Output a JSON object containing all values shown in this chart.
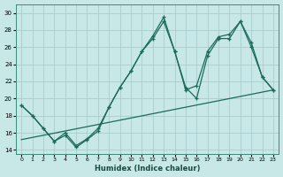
{
  "xlabel": "Humidex (Indice chaleur)",
  "xlim": [
    -0.5,
    23.5
  ],
  "ylim": [
    13.5,
    31.0
  ],
  "yticks": [
    14,
    16,
    18,
    20,
    22,
    24,
    26,
    28,
    30
  ],
  "xticks": [
    0,
    1,
    2,
    3,
    4,
    5,
    6,
    7,
    8,
    9,
    10,
    11,
    12,
    13,
    14,
    15,
    16,
    17,
    18,
    19,
    20,
    21,
    22,
    23
  ],
  "bg_color": "#c8e8e8",
  "grid_color": "#a8cccc",
  "line_color": "#1a6b5a",
  "series1_x": [
    0,
    1,
    2,
    3,
    4,
    5,
    6,
    7,
    8,
    9,
    10,
    11,
    12,
    13,
    14,
    15,
    16,
    17,
    18,
    19,
    20,
    21,
    22,
    23
  ],
  "series1_y": [
    19.2,
    18.0,
    16.5,
    15.0,
    15.7,
    14.3,
    15.2,
    16.2,
    19.0,
    21.3,
    23.2,
    25.5,
    27.3,
    29.5,
    25.5,
    21.0,
    21.5,
    25.5,
    27.2,
    27.5,
    29.0,
    26.5,
    22.5,
    21.0
  ],
  "series2_x": [
    0,
    1,
    2,
    3,
    4,
    5,
    6,
    7,
    8,
    9,
    10,
    11,
    12,
    13,
    14,
    15,
    16,
    17,
    18,
    19,
    20,
    21,
    22,
    23
  ],
  "series2_y": [
    19.2,
    18.0,
    16.5,
    15.0,
    16.0,
    14.5,
    15.3,
    16.5,
    19.0,
    21.3,
    23.2,
    25.5,
    27.0,
    29.0,
    25.5,
    21.3,
    20.0,
    25.0,
    27.0,
    27.0,
    29.0,
    26.0,
    22.5,
    21.0
  ],
  "trend_x": [
    0,
    23
  ],
  "trend_y": [
    15.2,
    21.0
  ]
}
